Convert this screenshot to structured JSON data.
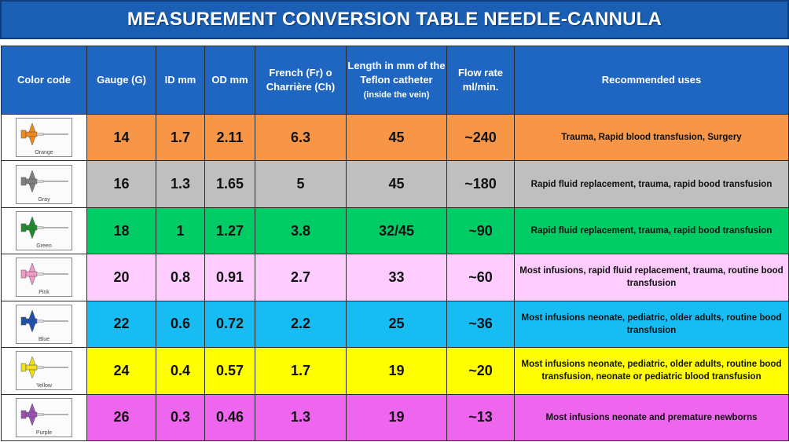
{
  "title": "MEASUREMENT CONVERSION TABLE NEEDLE-CANNULA",
  "headers": {
    "color_code": "Color code",
    "gauge": "Gauge (G)",
    "id": "ID mm",
    "od": "OD mm",
    "french": "French (Fr) o Charrière (Ch)",
    "length_main": "Length in mm of the Teflon catheter",
    "length_note": "(inside the vein)",
    "flow": "Flow rate ml/min.",
    "uses": "Recommended uses"
  },
  "rows": [
    {
      "color_name": "Orange",
      "color": "#f79646",
      "hub": "#f08a1c",
      "gauge": "14",
      "id": "1.7",
      "od": "2.11",
      "french": "6.3",
      "length": "45",
      "flow": "~240",
      "uses": "Trauma, Rapid blood transfusion, Surgery"
    },
    {
      "color_name": "Gray",
      "color": "#bfbfbf",
      "hub": "#7f7f7f",
      "gauge": "16",
      "id": "1.3",
      "od": "1.65",
      "french": "5",
      "length": "45",
      "flow": "~180",
      "uses": "Rapid fluid replacement, trauma, rapid bood transfusion"
    },
    {
      "color_name": "Green",
      "color": "#00cc66",
      "hub": "#1e8c2e",
      "gauge": "18",
      "id": "1",
      "od": "1.27",
      "french": "3.8",
      "length": "32/45",
      "flow": "~90",
      "uses": "Rapid fluid replacement, trauma, rapid bood transfusion"
    },
    {
      "color_name": "Pink",
      "color": "#ffccff",
      "hub": "#f29ac8",
      "gauge": "20",
      "id": "0.8",
      "od": "0.91",
      "french": "2.7",
      "length": "33",
      "flow": "~60",
      "uses": "Most infusions, rapid fluid replacement, trauma, routine bood transfusion"
    },
    {
      "color_name": "Blue",
      "color": "#17bcf2",
      "hub": "#1c4fb0",
      "gauge": "22",
      "id": "0.6",
      "od": "0.72",
      "french": "2.2",
      "length": "25",
      "flow": "~36",
      "uses": "Most infusions neonate, pediatric, older adults, routine bood transfusion"
    },
    {
      "color_name": "Yellow",
      "color": "#ffff00",
      "hub": "#f2e21a",
      "gauge": "24",
      "id": "0.4",
      "od": "0.57",
      "french": "1.7",
      "length": "19",
      "flow": "~20",
      "uses": "Most infusions neonate, pediatric, older adults, routine bood transfusion, neonate or pediatric blood transfusion"
    },
    {
      "color_name": "Purple",
      "color": "#ee66ee",
      "hub": "#9b4fb5",
      "gauge": "26",
      "id": "0.3",
      "od": "0.46",
      "french": "1.3",
      "length": "19",
      "flow": "~13",
      "uses": "Most infusions neonate and premature newborns"
    }
  ]
}
